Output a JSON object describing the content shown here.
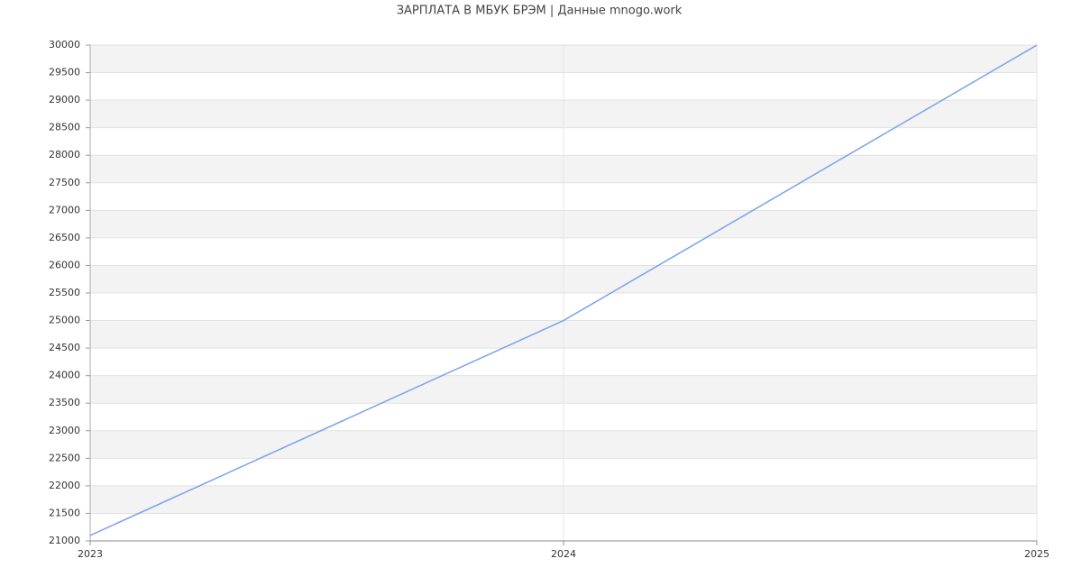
{
  "chart_data": {
    "type": "line",
    "title": "ЗАРПЛАТА В МБУК БРЭМ | Данные mnogo.work",
    "x": [
      2023,
      2024,
      2025
    ],
    "values": [
      21100,
      25000,
      30000
    ],
    "color": "#7aa3ec",
    "xlim": [
      2023,
      2025
    ],
    "xticks": [
      2023,
      2024,
      2025
    ],
    "ylim": [
      21000,
      30000
    ],
    "yticks": [
      21000,
      21500,
      22000,
      22500,
      23000,
      23500,
      24000,
      24500,
      25000,
      25500,
      26000,
      26500,
      27000,
      27500,
      28000,
      28500,
      29000,
      29500,
      30000
    ],
    "grid": true
  }
}
